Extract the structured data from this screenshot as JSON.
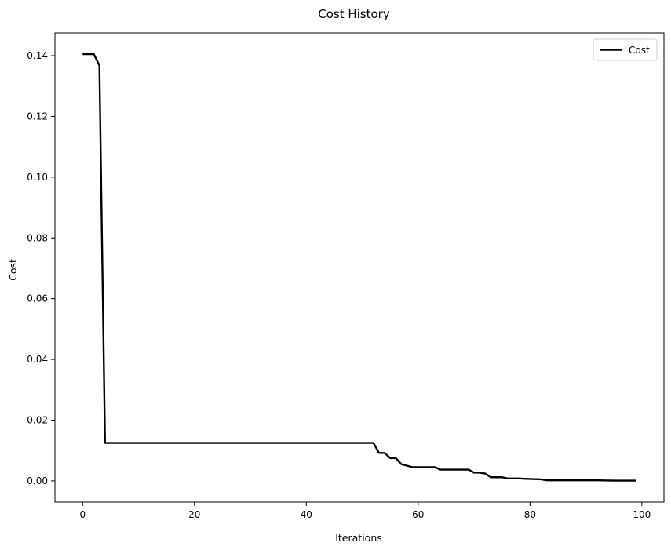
{
  "chart_data": {
    "type": "line",
    "title": "Cost History",
    "xlabel": "Iterations",
    "ylabel": "Cost",
    "xlim": [
      -4.95,
      103.95
    ],
    "ylim": [
      -0.007,
      0.1475
    ],
    "xticks": [
      0,
      20,
      40,
      60,
      80,
      100
    ],
    "xtick_labels": [
      "0",
      "20",
      "40",
      "60",
      "80",
      "100"
    ],
    "yticks": [
      0.0,
      0.02,
      0.04,
      0.06,
      0.08,
      0.1,
      0.12,
      0.14
    ],
    "ytick_labels": [
      "0.00",
      "0.02",
      "0.04",
      "0.06",
      "0.08",
      "0.10",
      "0.12",
      "0.14"
    ],
    "grid": false,
    "legend": {
      "position": "top-right",
      "entries": [
        "Cost"
      ]
    },
    "series": [
      {
        "name": "Cost",
        "color": "#000000",
        "points": [
          [
            0,
            0.1405
          ],
          [
            2,
            0.1405
          ],
          [
            3,
            0.1368
          ],
          [
            4,
            0.0125
          ],
          [
            52,
            0.0125
          ],
          [
            53,
            0.0092
          ],
          [
            54,
            0.0092
          ],
          [
            55,
            0.0075
          ],
          [
            56,
            0.0075
          ],
          [
            57,
            0.0055
          ],
          [
            58,
            0.005
          ],
          [
            59,
            0.0045
          ],
          [
            63,
            0.0045
          ],
          [
            64,
            0.0037
          ],
          [
            69,
            0.0037
          ],
          [
            70,
            0.0027
          ],
          [
            71,
            0.0027
          ],
          [
            72,
            0.0024
          ],
          [
            73,
            0.0012
          ],
          [
            75,
            0.0012
          ],
          [
            76,
            0.0008
          ],
          [
            78,
            0.0008
          ],
          [
            79,
            0.0007
          ],
          [
            82,
            0.0005
          ],
          [
            83,
            0.0002
          ],
          [
            92,
            0.0002
          ],
          [
            95,
            0.0001
          ],
          [
            99,
            0.0001
          ]
        ]
      }
    ]
  }
}
